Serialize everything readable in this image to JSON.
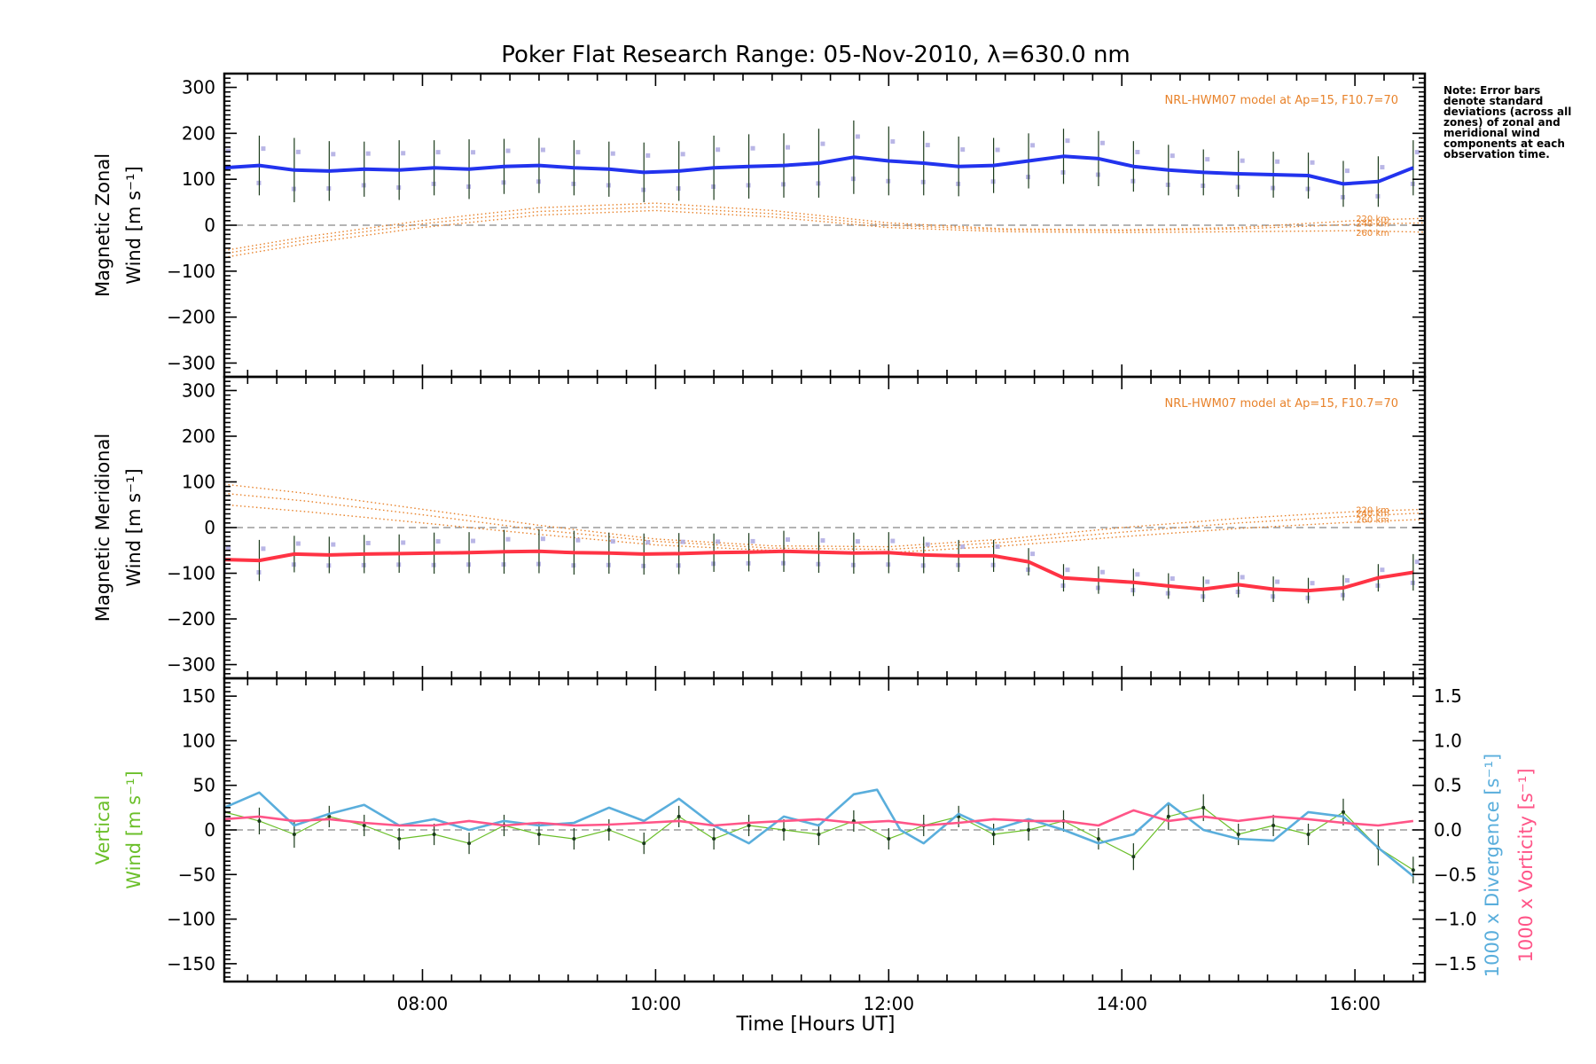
{
  "title": "Poker Flat Research Range: 05-Nov-2010, λ=630.0 nm",
  "note": "Note: Error bars denote standard deviations (across all zones) of zonal and meridional wind components at each observation time.",
  "xlabel": "Time [Hours UT]",
  "colors": {
    "zonal": "#2233ee",
    "meridional": "#ff3344",
    "vertical": "#6bbf2a",
    "divergence": "#5aaedc",
    "vorticity": "#ff5588",
    "model": "#e8822a",
    "zone_points": "#a8a4e0",
    "error_bars": "#1a3a1a"
  },
  "chart_data": [
    {
      "type": "line",
      "panel": "zonal",
      "title": "Poker Flat Research Range: 05-Nov-2010, λ=630.0 nm",
      "ylabel_line1": "Magnetic Zonal",
      "ylabel_line2": "Wind [m s⁻¹]",
      "xlim": [
        6.3,
        16.6
      ],
      "ylim": [
        -330,
        330
      ],
      "yticks": [
        -300,
        -200,
        -100,
        0,
        100,
        200,
        300
      ],
      "ytick_labels": [
        "−300",
        "−200",
        "−100",
        "0",
        "100",
        "200",
        "300"
      ],
      "model_label": "NRL-HWM07 model at Ap=15, F10.7=70",
      "series": [
        {
          "name": "Magnetic Zonal Wind",
          "x": [
            6.3,
            6.6,
            6.9,
            7.2,
            7.5,
            7.8,
            8.1,
            8.4,
            8.7,
            9.0,
            9.3,
            9.6,
            9.9,
            10.2,
            10.5,
            10.8,
            11.1,
            11.4,
            11.7,
            12.0,
            12.3,
            12.6,
            12.9,
            13.2,
            13.5,
            13.8,
            14.1,
            14.4,
            14.7,
            15.0,
            15.3,
            15.6,
            15.9,
            16.2,
            16.5
          ],
          "y": [
            125,
            130,
            120,
            118,
            122,
            120,
            125,
            122,
            128,
            130,
            125,
            122,
            115,
            118,
            125,
            128,
            130,
            135,
            148,
            140,
            135,
            128,
            130,
            140,
            150,
            145,
            128,
            120,
            115,
            112,
            110,
            108,
            90,
            95,
            125
          ],
          "err": [
            65,
            65,
            70,
            65,
            60,
            65,
            60,
            65,
            60,
            60,
            60,
            60,
            65,
            65,
            70,
            70,
            70,
            75,
            80,
            75,
            70,
            65,
            60,
            60,
            60,
            60,
            55,
            55,
            50,
            50,
            50,
            50,
            50,
            55,
            60
          ]
        }
      ],
      "model": [
        {
          "name": "220 km",
          "x": [
            6.3,
            7,
            8,
            9,
            10,
            11,
            12,
            13,
            14,
            15,
            16,
            16.6
          ],
          "y": [
            -55,
            -25,
            10,
            38,
            48,
            32,
            5,
            -8,
            -10,
            -5,
            10,
            15
          ]
        },
        {
          "name": "240 km",
          "x": [
            6.3,
            7,
            8,
            9,
            10,
            11,
            12,
            13,
            14,
            15,
            16,
            16.6
          ],
          "y": [
            -62,
            -32,
            3,
            30,
            40,
            25,
            0,
            -10,
            -12,
            -8,
            2,
            5
          ]
        },
        {
          "name": "260 km",
          "x": [
            6.3,
            7,
            8,
            9,
            10,
            11,
            12,
            13,
            14,
            15,
            16,
            16.6
          ],
          "y": [
            -70,
            -40,
            -5,
            22,
            32,
            18,
            -5,
            -14,
            -16,
            -14,
            -12,
            -15
          ]
        }
      ]
    },
    {
      "type": "line",
      "panel": "meridional",
      "ylabel_line1": "Magnetic Meridional",
      "ylabel_line2": "Wind [m s⁻¹]",
      "xlim": [
        6.3,
        16.6
      ],
      "ylim": [
        -330,
        330
      ],
      "yticks": [
        -300,
        -200,
        -100,
        0,
        100,
        200,
        300
      ],
      "ytick_labels": [
        "−300",
        "−200",
        "−100",
        "0",
        "100",
        "200",
        "300"
      ],
      "model_label": "NRL-HWM07 model at Ap=15, F10.7=70",
      "series": [
        {
          "name": "Magnetic Meridional Wind",
          "x": [
            6.3,
            6.6,
            6.9,
            7.2,
            7.5,
            7.8,
            8.1,
            8.4,
            8.7,
            9.0,
            9.3,
            9.6,
            9.9,
            10.2,
            10.5,
            10.8,
            11.1,
            11.4,
            11.7,
            12.0,
            12.3,
            12.6,
            12.9,
            13.2,
            13.5,
            13.8,
            14.1,
            14.4,
            14.7,
            15.0,
            15.3,
            15.6,
            15.9,
            16.2,
            16.5
          ],
          "y": [
            -70,
            -72,
            -58,
            -60,
            -58,
            -57,
            -56,
            -55,
            -53,
            -52,
            -55,
            -56,
            -58,
            -57,
            -55,
            -54,
            -52,
            -54,
            -56,
            -55,
            -60,
            -62,
            -62,
            -75,
            -110,
            -115,
            -120,
            -128,
            -135,
            -125,
            -135,
            -138,
            -132,
            -110,
            -98
          ],
          "err": [
            45,
            45,
            40,
            40,
            42,
            42,
            45,
            45,
            48,
            48,
            48,
            45,
            45,
            45,
            42,
            42,
            45,
            45,
            45,
            45,
            40,
            35,
            35,
            30,
            30,
            30,
            30,
            28,
            28,
            28,
            28,
            28,
            28,
            30,
            40
          ]
        }
      ],
      "model": [
        {
          "name": "220 km",
          "x": [
            6.3,
            7,
            8,
            9,
            10,
            11,
            12,
            13,
            14,
            15,
            16,
            16.6
          ],
          "y": [
            95,
            75,
            40,
            5,
            -25,
            -40,
            -42,
            -25,
            0,
            20,
            35,
            40
          ]
        },
        {
          "name": "240 km",
          "x": [
            6.3,
            7,
            8,
            9,
            10,
            11,
            12,
            13,
            14,
            15,
            16,
            16.6
          ],
          "y": [
            75,
            58,
            28,
            -5,
            -30,
            -45,
            -48,
            -32,
            -10,
            10,
            25,
            32
          ]
        },
        {
          "name": "260 km",
          "x": [
            6.3,
            7,
            8,
            9,
            10,
            11,
            12,
            13,
            14,
            15,
            16,
            16.6
          ],
          "y": [
            50,
            35,
            10,
            -15,
            -38,
            -50,
            -55,
            -40,
            -20,
            -2,
            12,
            18
          ]
        }
      ]
    },
    {
      "type": "line",
      "panel": "vertical",
      "ylabel_line1": "Vertical",
      "ylabel_line2": "Wind [m s⁻¹]",
      "y2label_divergence": "1000 x Divergence [s⁻¹]",
      "y2label_vorticity": "1000 x Vorticity [s⁻¹]",
      "xlabel": "Time [Hours UT]",
      "xlim": [
        6.3,
        16.6
      ],
      "xticks": [
        8,
        10,
        12,
        14,
        16
      ],
      "xtick_labels": [
        "08:00",
        "10:00",
        "12:00",
        "14:00",
        "16:00"
      ],
      "ylim": [
        -170,
        170
      ],
      "yticks": [
        -150,
        -100,
        -50,
        0,
        50,
        100,
        150
      ],
      "ytick_labels": [
        "−150",
        "−100",
        "−50",
        "0",
        "50",
        "100",
        "150"
      ],
      "y2lim": [
        -1.7,
        1.7
      ],
      "y2ticks": [
        -1.5,
        -1.0,
        -0.5,
        0.0,
        0.5,
        1.0,
        1.5
      ],
      "y2tick_labels": [
        "−1.5",
        "−1.0",
        "−0.5",
        "0.0",
        "0.5",
        "1.0",
        "1.5"
      ],
      "series": [
        {
          "name": "Vertical Wind",
          "axis": "left",
          "x": [
            6.3,
            6.6,
            6.9,
            7.2,
            7.5,
            7.8,
            8.1,
            8.4,
            8.7,
            9.0,
            9.3,
            9.6,
            9.9,
            10.2,
            10.5,
            10.8,
            11.1,
            11.4,
            11.7,
            12.0,
            12.3,
            12.6,
            12.9,
            13.2,
            13.5,
            13.8,
            14.1,
            14.4,
            14.7,
            15.0,
            15.3,
            15.6,
            15.9,
            16.2,
            16.5
          ],
          "y": [
            20,
            10,
            -5,
            15,
            5,
            -10,
            -5,
            -15,
            5,
            -5,
            -10,
            0,
            -15,
            15,
            -10,
            5,
            0,
            -5,
            10,
            -10,
            5,
            15,
            -5,
            0,
            10,
            -10,
            -30,
            15,
            25,
            -5,
            5,
            -5,
            20,
            -20,
            -45
          ],
          "err": [
            10,
            15,
            15,
            12,
            12,
            12,
            12,
            12,
            12,
            12,
            12,
            12,
            12,
            12,
            12,
            12,
            12,
            12,
            12,
            12,
            12,
            12,
            12,
            12,
            12,
            12,
            15,
            15,
            15,
            12,
            12,
            12,
            15,
            20,
            15
          ]
        },
        {
          "name": "1000 x Divergence",
          "axis": "right",
          "x": [
            6.3,
            6.6,
            6.9,
            7.2,
            7.5,
            7.8,
            8.1,
            8.4,
            8.7,
            9.0,
            9.3,
            9.6,
            9.9,
            10.2,
            10.5,
            10.8,
            11.1,
            11.4,
            11.7,
            11.9,
            12.1,
            12.3,
            12.6,
            12.9,
            13.2,
            13.5,
            13.8,
            14.1,
            14.4,
            14.7,
            15.0,
            15.3,
            15.6,
            15.9,
            16.2,
            16.5
          ],
          "y": [
            0.25,
            0.42,
            0.05,
            0.18,
            0.28,
            0.05,
            0.12,
            0.0,
            0.1,
            0.05,
            0.08,
            0.25,
            0.1,
            0.35,
            0.05,
            -0.15,
            0.15,
            0.05,
            0.4,
            0.45,
            0.0,
            -0.15,
            0.18,
            0.0,
            0.12,
            0.0,
            -0.15,
            -0.05,
            0.3,
            0.0,
            -0.1,
            -0.12,
            0.2,
            0.15,
            -0.2,
            -0.52
          ]
        },
        {
          "name": "1000 x Vorticity",
          "axis": "right",
          "x": [
            6.3,
            6.6,
            6.9,
            7.2,
            7.5,
            7.8,
            8.1,
            8.4,
            8.7,
            9.0,
            9.3,
            9.6,
            9.9,
            10.2,
            10.5,
            10.8,
            11.1,
            11.4,
            11.7,
            12.0,
            12.3,
            12.6,
            12.9,
            13.2,
            13.5,
            13.8,
            14.1,
            14.4,
            14.7,
            15.0,
            15.3,
            15.6,
            15.9,
            16.2,
            16.5
          ],
          "y": [
            0.12,
            0.15,
            0.1,
            0.12,
            0.08,
            0.05,
            0.05,
            0.1,
            0.05,
            0.08,
            0.05,
            0.06,
            0.08,
            0.1,
            0.05,
            0.08,
            0.1,
            0.12,
            0.08,
            0.1,
            0.05,
            0.08,
            0.12,
            0.1,
            0.1,
            0.05,
            0.22,
            0.1,
            0.15,
            0.1,
            0.15,
            0.12,
            0.08,
            0.05,
            0.1
          ]
        }
      ]
    }
  ]
}
